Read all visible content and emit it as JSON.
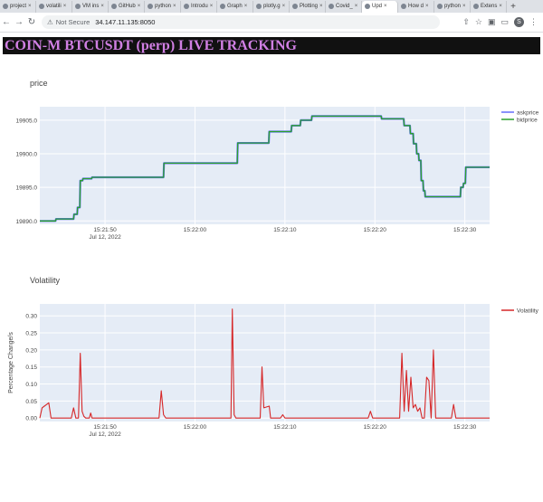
{
  "browser": {
    "tabs": [
      {
        "label": "project"
      },
      {
        "label": "volatili"
      },
      {
        "label": "VM ins"
      },
      {
        "label": "GitHub"
      },
      {
        "label": "python"
      },
      {
        "label": "Introdu"
      },
      {
        "label": "Graph"
      },
      {
        "label": "plotly.g"
      },
      {
        "label": "Plotting"
      },
      {
        "label": "Covid_"
      },
      {
        "label": "Upd",
        "active": true
      },
      {
        "label": "How d"
      },
      {
        "label": "python"
      },
      {
        "label": "Extens"
      }
    ],
    "address": {
      "security": "Not Secure",
      "url": "34.147.11.135:8050"
    },
    "profile_initial": "S"
  },
  "page": {
    "title": "COIN-M BTCUSDT (perp) LIVE TRACKING"
  },
  "chart_data": [
    {
      "type": "line",
      "title": "price",
      "series": [
        {
          "name": "askprice",
          "color": "#636efa",
          "points": [
            [
              0,
              19890.0
            ],
            [
              3.5,
              19890.0
            ],
            [
              3.6,
              19890.3
            ],
            [
              7.5,
              19890.3
            ],
            [
              7.6,
              19891.0
            ],
            [
              8.3,
              19891.0
            ],
            [
              8.4,
              19892.0
            ],
            [
              8.9,
              19892.0
            ],
            [
              9.0,
              19896.0
            ],
            [
              9.5,
              19896.0
            ],
            [
              9.6,
              19896.3
            ],
            [
              11.5,
              19896.3
            ],
            [
              11.6,
              19896.5
            ],
            [
              27.5,
              19896.5
            ],
            [
              27.6,
              19898.6
            ],
            [
              43.9,
              19898.6
            ],
            [
              44.0,
              19901.6
            ],
            [
              50.9,
              19901.6
            ],
            [
              51.0,
              19903.3
            ],
            [
              55.9,
              19903.3
            ],
            [
              56.0,
              19904.2
            ],
            [
              57.9,
              19904.2
            ],
            [
              58.0,
              19905.0
            ],
            [
              60.4,
              19905.0
            ],
            [
              60.5,
              19905.6
            ],
            [
              75.9,
              19905.6
            ],
            [
              76.0,
              19905.2
            ],
            [
              80.9,
              19905.2
            ],
            [
              81.0,
              19904.2
            ],
            [
              82.3,
              19904.2
            ],
            [
              82.4,
              19903.0
            ],
            [
              83.0,
              19903.0
            ],
            [
              83.1,
              19901.5
            ],
            [
              83.7,
              19901.5
            ],
            [
              83.8,
              19900.0
            ],
            [
              84.2,
              19900.0
            ],
            [
              84.3,
              19899.0
            ],
            [
              84.7,
              19899.0
            ],
            [
              84.8,
              19896.0
            ],
            [
              85.2,
              19896.0
            ],
            [
              85.3,
              19894.5
            ],
            [
              85.6,
              19894.5
            ],
            [
              85.7,
              19893.6
            ],
            [
              93.5,
              19893.6
            ],
            [
              93.6,
              19895.0
            ],
            [
              94.1,
              19895.0
            ],
            [
              94.2,
              19895.6
            ],
            [
              94.6,
              19895.6
            ],
            [
              94.7,
              19898.0
            ],
            [
              100,
              19898.0
            ]
          ]
        },
        {
          "name": "bidprice",
          "color": "#2ca02c",
          "points": [
            [
              0,
              19890.0
            ],
            [
              3.5,
              19890.0
            ],
            [
              3.6,
              19890.3
            ],
            [
              7.5,
              19890.3
            ],
            [
              7.6,
              19891.0
            ],
            [
              8.3,
              19891.0
            ],
            [
              8.4,
              19892.0
            ],
            [
              8.9,
              19892.0
            ],
            [
              9.0,
              19896.0
            ],
            [
              9.5,
              19896.0
            ],
            [
              9.6,
              19896.3
            ],
            [
              11.5,
              19896.3
            ],
            [
              11.6,
              19896.5
            ],
            [
              27.5,
              19896.5
            ],
            [
              27.6,
              19898.6
            ],
            [
              43.9,
              19898.6
            ],
            [
              44.0,
              19901.6
            ],
            [
              50.9,
              19901.6
            ],
            [
              51.0,
              19903.3
            ],
            [
              55.9,
              19903.3
            ],
            [
              56.0,
              19904.2
            ],
            [
              57.9,
              19904.2
            ],
            [
              58.0,
              19905.0
            ],
            [
              60.4,
              19905.0
            ],
            [
              60.5,
              19905.6
            ],
            [
              75.9,
              19905.6
            ],
            [
              76.0,
              19905.2
            ],
            [
              80.9,
              19905.2
            ],
            [
              81.0,
              19904.2
            ],
            [
              82.3,
              19904.2
            ],
            [
              82.4,
              19903.0
            ],
            [
              83.0,
              19903.0
            ],
            [
              83.1,
              19901.5
            ],
            [
              83.7,
              19901.5
            ],
            [
              83.8,
              19900.0
            ],
            [
              84.2,
              19900.0
            ],
            [
              84.3,
              19899.0
            ],
            [
              84.7,
              19899.0
            ],
            [
              84.8,
              19896.0
            ],
            [
              85.2,
              19896.0
            ],
            [
              85.3,
              19894.5
            ],
            [
              85.6,
              19894.5
            ],
            [
              85.7,
              19893.6
            ],
            [
              93.5,
              19893.6
            ],
            [
              93.6,
              19895.0
            ],
            [
              94.1,
              19895.0
            ],
            [
              94.2,
              19895.6
            ],
            [
              94.6,
              19895.6
            ],
            [
              94.7,
              19898.0
            ],
            [
              100,
              19898.0
            ]
          ]
        }
      ],
      "x_ticks": [
        {
          "x": 14.5,
          "label": "15:21:50",
          "sub": "Jul 12, 2022"
        },
        {
          "x": 34.5,
          "label": "15:22:00"
        },
        {
          "x": 54.5,
          "label": "15:22:10"
        },
        {
          "x": 74.5,
          "label": "15:22:20"
        },
        {
          "x": 94.5,
          "label": "15:22:30"
        }
      ],
      "xlim": [
        0,
        100
      ],
      "y_ticks": [
        19890,
        19895,
        19900,
        19905
      ],
      "y_tick_labels": [
        "19890.0",
        "19895.0",
        "19900.0",
        "19905.0"
      ],
      "ylim": [
        19889.5,
        19907.0
      ],
      "legend_position": "top-right",
      "grid": true
    },
    {
      "type": "line",
      "title": "Volatility",
      "ylabel": "Percentage Change/s",
      "series": [
        {
          "name": "Volatility",
          "color": "#d62728",
          "points": [
            [
              0,
              0.0
            ],
            [
              0.5,
              0.03
            ],
            [
              1,
              0.035
            ],
            [
              1.5,
              0.04
            ],
            [
              2,
              0.045
            ],
            [
              2.5,
              0.0
            ],
            [
              7,
              0.0
            ],
            [
              7.5,
              0.03
            ],
            [
              8,
              0.0
            ],
            [
              8.6,
              0.0
            ],
            [
              9,
              0.19
            ],
            [
              9.4,
              0.02
            ],
            [
              9.8,
              0.005
            ],
            [
              10.2,
              0.0
            ],
            [
              11,
              0.0
            ],
            [
              11.3,
              0.015
            ],
            [
              11.6,
              0.0
            ],
            [
              26.5,
              0.0
            ],
            [
              27,
              0.08
            ],
            [
              27.5,
              0.01
            ],
            [
              28,
              0.0
            ],
            [
              42.5,
              0.0
            ],
            [
              42.8,
              0.32
            ],
            [
              43.2,
              0.01
            ],
            [
              43.6,
              0.0
            ],
            [
              49,
              0.0
            ],
            [
              49.4,
              0.15
            ],
            [
              49.8,
              0.03
            ],
            [
              51,
              0.035
            ],
            [
              51.3,
              0.0
            ],
            [
              53.5,
              0.0
            ],
            [
              54,
              0.01
            ],
            [
              54.5,
              0.0
            ],
            [
              73,
              0.0
            ],
            [
              73.5,
              0.02
            ],
            [
              74,
              0.0
            ],
            [
              80,
              0.0
            ],
            [
              80.5,
              0.19
            ],
            [
              81,
              0.02
            ],
            [
              81.5,
              0.14
            ],
            [
              82,
              0.02
            ],
            [
              82.5,
              0.12
            ],
            [
              83,
              0.03
            ],
            [
              83.5,
              0.04
            ],
            [
              84,
              0.02
            ],
            [
              84.5,
              0.03
            ],
            [
              85,
              0.0
            ],
            [
              85.5,
              0.0
            ],
            [
              86,
              0.12
            ],
            [
              86.5,
              0.11
            ],
            [
              87,
              0.0
            ],
            [
              87.5,
              0.2
            ],
            [
              88,
              0.0
            ],
            [
              91.5,
              0.0
            ],
            [
              92,
              0.04
            ],
            [
              92.5,
              0.0
            ],
            [
              100,
              0.0
            ]
          ]
        }
      ],
      "x_ticks": [
        {
          "x": 14.5,
          "label": "15:21:50",
          "sub": "Jul 12, 2022"
        },
        {
          "x": 34.5,
          "label": "15:22:00"
        },
        {
          "x": 54.5,
          "label": "15:22:10"
        },
        {
          "x": 74.5,
          "label": "15:22:20"
        },
        {
          "x": 94.5,
          "label": "15:22:30"
        }
      ],
      "xlim": [
        0,
        100
      ],
      "y_ticks": [
        0,
        0.05,
        0.1,
        0.15,
        0.2,
        0.25,
        0.3
      ],
      "y_tick_labels": [
        "0.00",
        "0.05",
        "0.10",
        "0.15",
        "0.20",
        "0.25",
        "0.30"
      ],
      "ylim": [
        -0.01,
        0.335
      ],
      "legend_position": "top-right",
      "grid": true
    }
  ],
  "colors": {
    "plot_bg": "#e5ecf6",
    "grid": "#ffffff",
    "header_bg": "#111111",
    "header_text": "#d07fe3"
  }
}
